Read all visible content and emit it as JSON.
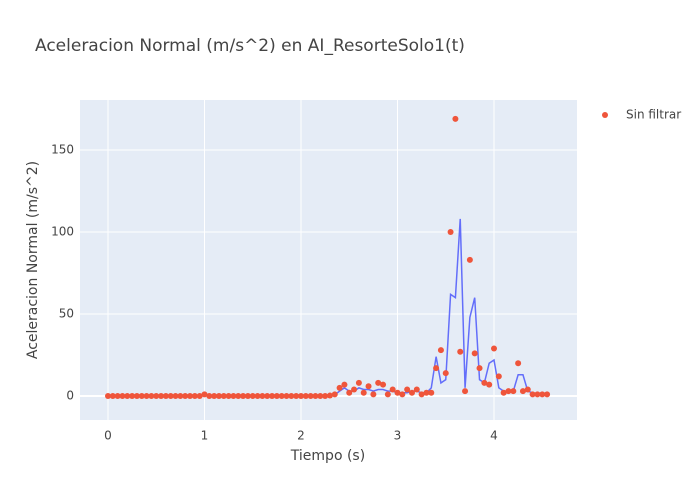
{
  "chart_data": {
    "type": "scatter",
    "title": "Aceleracion Normal (m/s^2) en AI_ResorteSolo1(t)",
    "x_label": "Tiempo (s)",
    "y_label": "Aceleracion Normal (m/s^2)",
    "x": [
      0,
      0.05,
      0.1,
      0.15,
      0.2,
      0.25,
      0.3,
      0.35,
      0.4,
      0.45,
      0.5,
      0.55,
      0.6,
      0.65,
      0.7,
      0.75,
      0.8,
      0.85,
      0.9,
      0.95,
      1,
      1.05,
      1.1,
      1.15,
      1.2,
      1.25,
      1.3,
      1.35,
      1.4,
      1.45,
      1.5,
      1.55,
      1.6,
      1.65,
      1.7,
      1.75,
      1.8,
      1.85,
      1.9,
      1.95,
      2,
      2.05,
      2.1,
      2.15,
      2.2,
      2.25,
      2.3,
      2.35,
      2.4,
      2.45,
      2.5,
      2.55,
      2.6,
      2.65,
      2.7,
      2.75,
      2.8,
      2.85,
      2.9,
      2.95,
      3,
      3.05,
      3.1,
      3.15,
      3.2,
      3.25,
      3.3,
      3.35,
      3.4,
      3.45,
      3.5,
      3.55,
      3.6,
      3.65,
      3.7,
      3.75,
      3.8,
      3.85,
      3.9,
      3.95,
      4,
      4.05,
      4.1,
      4.15,
      4.2,
      4.25,
      4.3,
      4.35,
      4.4,
      4.45,
      4.5,
      4.55
    ],
    "series": [
      {
        "name": "Sin filtrar",
        "mode": "markers",
        "color": "#ef553b",
        "values": [
          0,
          0,
          0,
          0,
          0,
          0,
          0,
          0,
          0,
          0,
          0,
          0,
          0,
          0,
          0,
          0,
          0,
          0,
          0,
          0,
          1,
          0,
          0,
          0,
          0,
          0,
          0,
          0,
          0,
          0,
          0,
          0,
          0,
          0,
          0,
          0,
          0,
          0,
          0,
          0,
          0,
          0,
          0,
          0,
          0,
          0,
          0.3,
          1,
          5,
          7,
          2,
          4,
          8,
          2,
          6,
          1,
          8,
          7,
          1,
          4,
          2,
          1,
          4,
          2,
          4,
          1,
          2,
          2,
          17,
          28,
          14,
          100,
          169,
          27,
          3,
          83,
          26,
          17,
          8,
          7,
          29,
          12,
          2,
          3,
          3,
          20,
          3,
          4,
          1,
          1,
          1,
          1
        ]
      },
      {
        "mode": "lines",
        "color": "#636efa",
        "values": [
          0,
          0,
          0,
          0,
          0,
          0,
          0,
          0,
          0,
          0,
          0,
          0,
          0,
          0,
          0,
          0,
          0,
          0,
          0,
          0,
          0.5,
          0,
          0,
          0,
          0,
          0,
          0,
          0,
          0,
          0,
          0,
          0,
          0,
          0,
          0,
          0,
          0,
          0,
          0,
          0,
          0,
          0,
          0,
          0,
          0,
          0,
          0.2,
          0.8,
          3,
          5,
          3,
          3,
          5,
          4,
          4,
          3,
          4,
          4,
          3,
          3,
          2,
          2,
          2,
          3,
          3,
          2,
          2,
          5,
          24,
          8,
          10,
          62,
          60,
          108,
          5,
          48,
          60,
          10,
          8,
          20,
          22,
          5,
          3,
          3,
          3,
          13,
          13,
          3,
          2,
          1,
          1,
          1
        ]
      }
    ],
    "xlim": [
      -0.29,
      4.86
    ],
    "ylim": [
      -14.6,
      180.5
    ],
    "xticks": [
      0,
      1,
      2,
      3,
      4
    ],
    "yticks": [
      0,
      50,
      100,
      150
    ],
    "grid": true,
    "legend": "top-right"
  }
}
